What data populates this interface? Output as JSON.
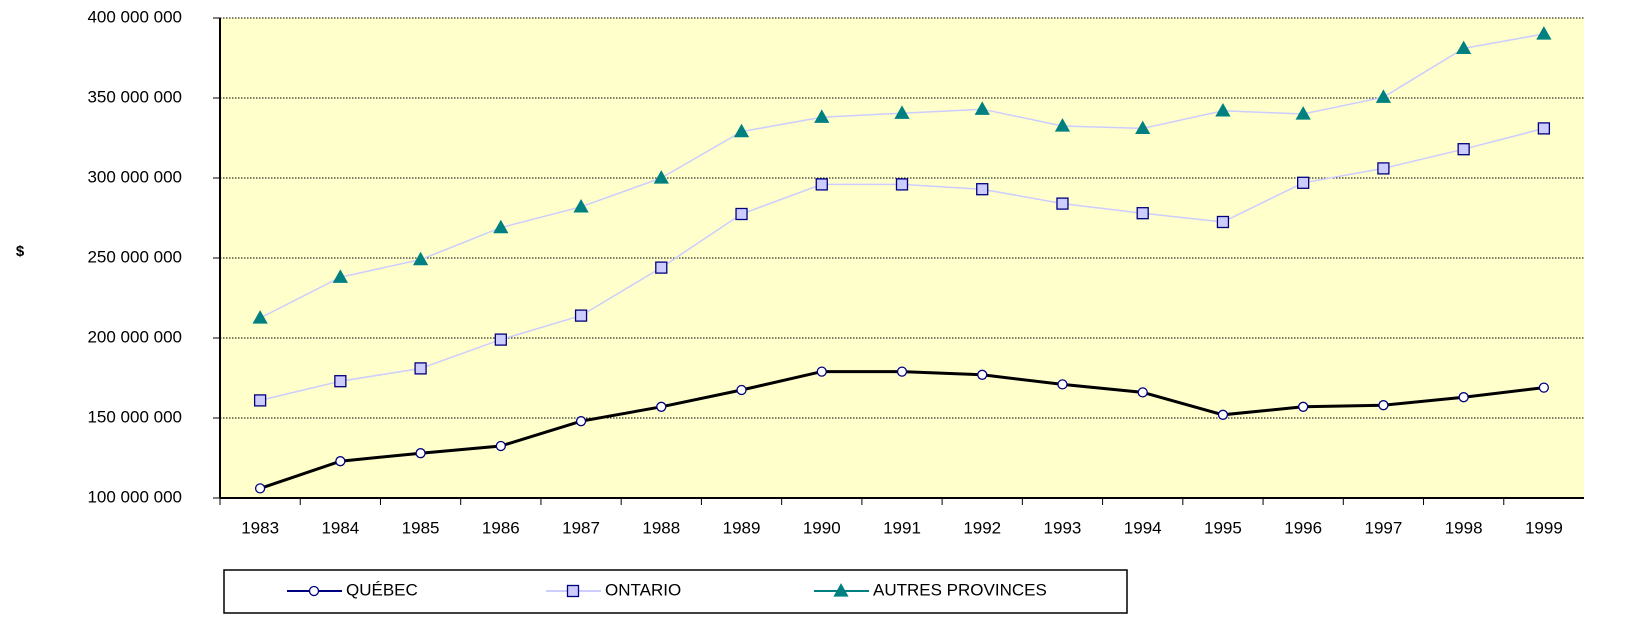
{
  "chart_data": {
    "type": "line",
    "y_label": "$",
    "categories": [
      "1983",
      "1984",
      "1985",
      "1986",
      "1987",
      "1988",
      "1989",
      "1990",
      "1991",
      "1992",
      "1993",
      "1994",
      "1995",
      "1996",
      "1997",
      "1998",
      "1999"
    ],
    "series": [
      {
        "name": "QUÉBEC",
        "color": "#ffffff",
        "line_color": "#000000",
        "marker": "circle",
        "values": [
          106000000,
          123000000,
          128000000,
          132500000,
          148000000,
          157000000,
          167500000,
          179000000,
          179000000,
          177000000,
          171000000,
          166000000,
          152000000,
          157000000,
          158000000,
          163000000,
          169000000
        ]
      },
      {
        "name": "ONTARIO",
        "color": "#ccccff",
        "line_color": "#ccccff",
        "marker": "square",
        "values": [
          161000000,
          173000000,
          181000000,
          199000000,
          214000000,
          244000000,
          277500000,
          296000000,
          296000000,
          293000000,
          284000000,
          278000000,
          272500000,
          297000000,
          306000000,
          318000000,
          331000000
        ]
      },
      {
        "name": "AUTRES PROVINCES",
        "color": "#008080",
        "line_color": "#ccccff",
        "marker": "triangle",
        "values": [
          212500000,
          238000000,
          249000000,
          269000000,
          282000000,
          300000000,
          329000000,
          338000000,
          340500000,
          343000000,
          332500000,
          331000000,
          342000000,
          340000000,
          350500000,
          381000000,
          390000000
        ]
      }
    ],
    "ylim": [
      100000000,
      400000000
    ],
    "yticks": [
      {
        "value": 100000000,
        "label": "100 000 000"
      },
      {
        "value": 150000000,
        "label": "150 000 000"
      },
      {
        "value": 200000000,
        "label": "200 000 000"
      },
      {
        "value": 250000000,
        "label": "250 000 000"
      },
      {
        "value": 300000000,
        "label": "300 000 000"
      },
      {
        "value": 350000000,
        "label": "350 000 000"
      },
      {
        "value": 400000000,
        "label": "400 000 000"
      }
    ],
    "grid": true,
    "legend": "bottom",
    "background": "#ffffcc"
  }
}
